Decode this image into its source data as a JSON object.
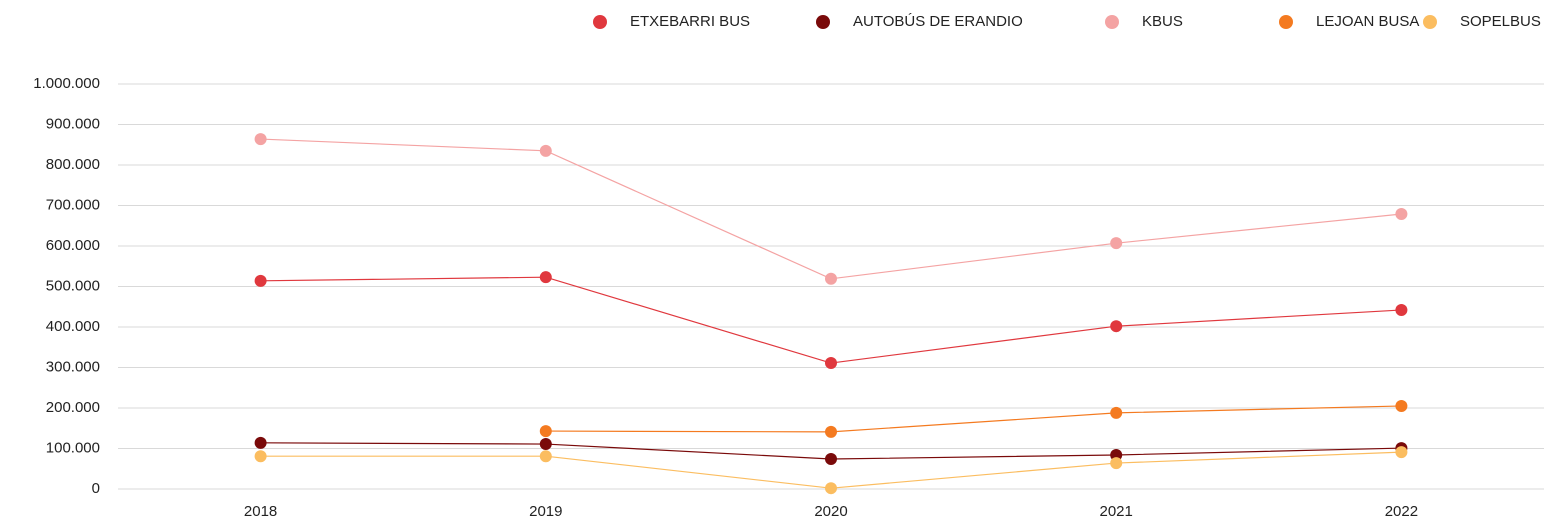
{
  "chart_data": {
    "type": "line",
    "categories": [
      "2018",
      "2019",
      "2020",
      "2021",
      "2022"
    ],
    "series": [
      {
        "name": "ETXEBARRI BUS",
        "color": "#e0383e",
        "values": [
          514000,
          523000,
          311000,
          402000,
          442000
        ]
      },
      {
        "name": "AUTOBÚS DE ERANDIO",
        "color": "#7a0a0a",
        "values": [
          114000,
          111000,
          74000,
          84000,
          101000
        ]
      },
      {
        "name": "KBUS",
        "color": "#f4a3a3",
        "values": [
          864000,
          835000,
          519000,
          607000,
          679000
        ]
      },
      {
        "name": "LEJOAN BUSA",
        "color": "#f47a20",
        "values": [
          null,
          143000,
          141000,
          188000,
          205000
        ]
      },
      {
        "name": "SOPELBUS",
        "color": "#fbbd60",
        "values": [
          81000,
          81000,
          2000,
          64000,
          91000
        ]
      }
    ],
    "ylim": [
      0,
      1000000
    ],
    "yticks": [
      0,
      {
        "value": 100000,
        "label": "100.000"
      },
      {
        "value": 200000,
        "label": "200.000"
      },
      {
        "value": 300000,
        "label": "300.000"
      },
      {
        "value": 400000,
        "label": "400.000"
      },
      {
        "value": 500000,
        "label": "500.000"
      },
      {
        "value": 600000,
        "label": "600.000"
      },
      {
        "value": 700000,
        "label": "700.000"
      },
      {
        "value": 800000,
        "label": "800.000"
      },
      {
        "value": 900000,
        "label": "900.000"
      },
      {
        "value": 1000000,
        "label": "1.000.000"
      }
    ],
    "grid": true,
    "legend": "top-right"
  }
}
